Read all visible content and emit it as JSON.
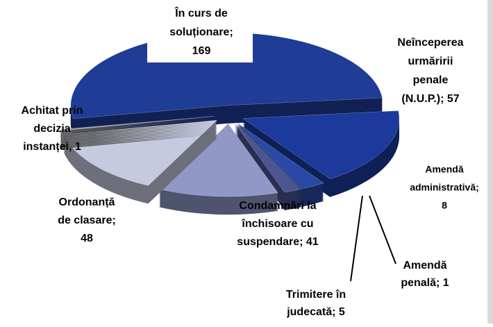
{
  "chart_data": {
    "type": "pie",
    "values": [
      169,
      57,
      8,
      1,
      5,
      41,
      48,
      1
    ],
    "value_labels": [
      [
        "În curs de",
        "soluționare;",
        "169"
      ],
      [
        "Neînceperea",
        "urmăririi",
        "penale",
        "(N.U.P.); 57"
      ],
      [
        "Amendă",
        "administrativă;",
        "8"
      ],
      [
        "Amendă",
        "penală; 1"
      ],
      [
        "Trimitere în",
        "judecată; 5"
      ],
      [
        "Condamnări la",
        "închisoare cu",
        "suspendare; 41"
      ],
      [
        "Ordonanță",
        "de clasare;",
        "48"
      ],
      [
        "Achitat prin",
        "decizia",
        "instanței, 1"
      ]
    ],
    "colors": [
      "#1f3c96",
      "#1c3a9c",
      "#2a49a6",
      "#3a4f9c",
      "#4b5591",
      "#9098c8",
      "#c6cae0",
      "#a3a3a3"
    ]
  }
}
